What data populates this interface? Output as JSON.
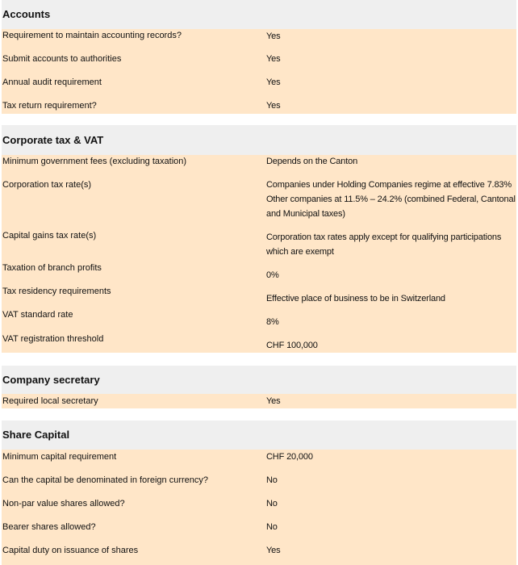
{
  "sections": [
    {
      "title": "Accounts",
      "rows": [
        {
          "label": "Requirement to maintain accounting records?",
          "value": [
            "Yes"
          ]
        },
        {
          "label": "Submit accounts to authorities",
          "value": [
            "Yes"
          ]
        },
        {
          "label": "Annual audit requirement",
          "value": [
            "Yes"
          ]
        },
        {
          "label": "Tax return requirement?",
          "value": [
            "Yes"
          ]
        }
      ]
    },
    {
      "title": "Corporate tax & VAT",
      "rows": [
        {
          "label": "Minimum government fees (excluding taxation)",
          "value": [
            "Depends on the Canton"
          ]
        },
        {
          "label": "Corporation tax rate(s)",
          "value": [
            "Companies under Holding Companies regime at effective 7.83%",
            "Other companies at 11.5% – 24.2% (combined Federal, Cantonal",
            "and Municipal taxes)"
          ]
        },
        {
          "label": "Capital gains tax rate(s)",
          "value": [
            "Corporation tax rates apply except for qualifying participations",
            "which are exempt"
          ]
        },
        {
          "label": "Taxation of branch profits",
          "value": [
            "0%"
          ]
        },
        {
          "label": "Tax residency requirements",
          "value": [
            "Effective place of business to be in Switzerland"
          ]
        },
        {
          "label": "VAT standard rate",
          "value": [
            "8%"
          ]
        },
        {
          "label": "VAT registration threshold",
          "value": [
            "CHF 100,000"
          ]
        }
      ]
    },
    {
      "title": "Company secretary",
      "rows": [
        {
          "label": "Required local secretary",
          "value": [
            "Yes"
          ]
        }
      ]
    },
    {
      "title": "Share Capital",
      "rows": [
        {
          "label": "Minimum capital requirement",
          "value": [
            "CHF 20,000"
          ]
        },
        {
          "label": "Can the capital be denominated in foreign currency?",
          "value": [
            "No"
          ]
        },
        {
          "label": "Non-par value shares allowed?",
          "value": [
            "No"
          ]
        },
        {
          "label": "Bearer shares allowed?",
          "value": [
            "No"
          ]
        },
        {
          "label": "Capital duty on issuance of shares",
          "value": [
            "Yes"
          ]
        }
      ]
    }
  ]
}
